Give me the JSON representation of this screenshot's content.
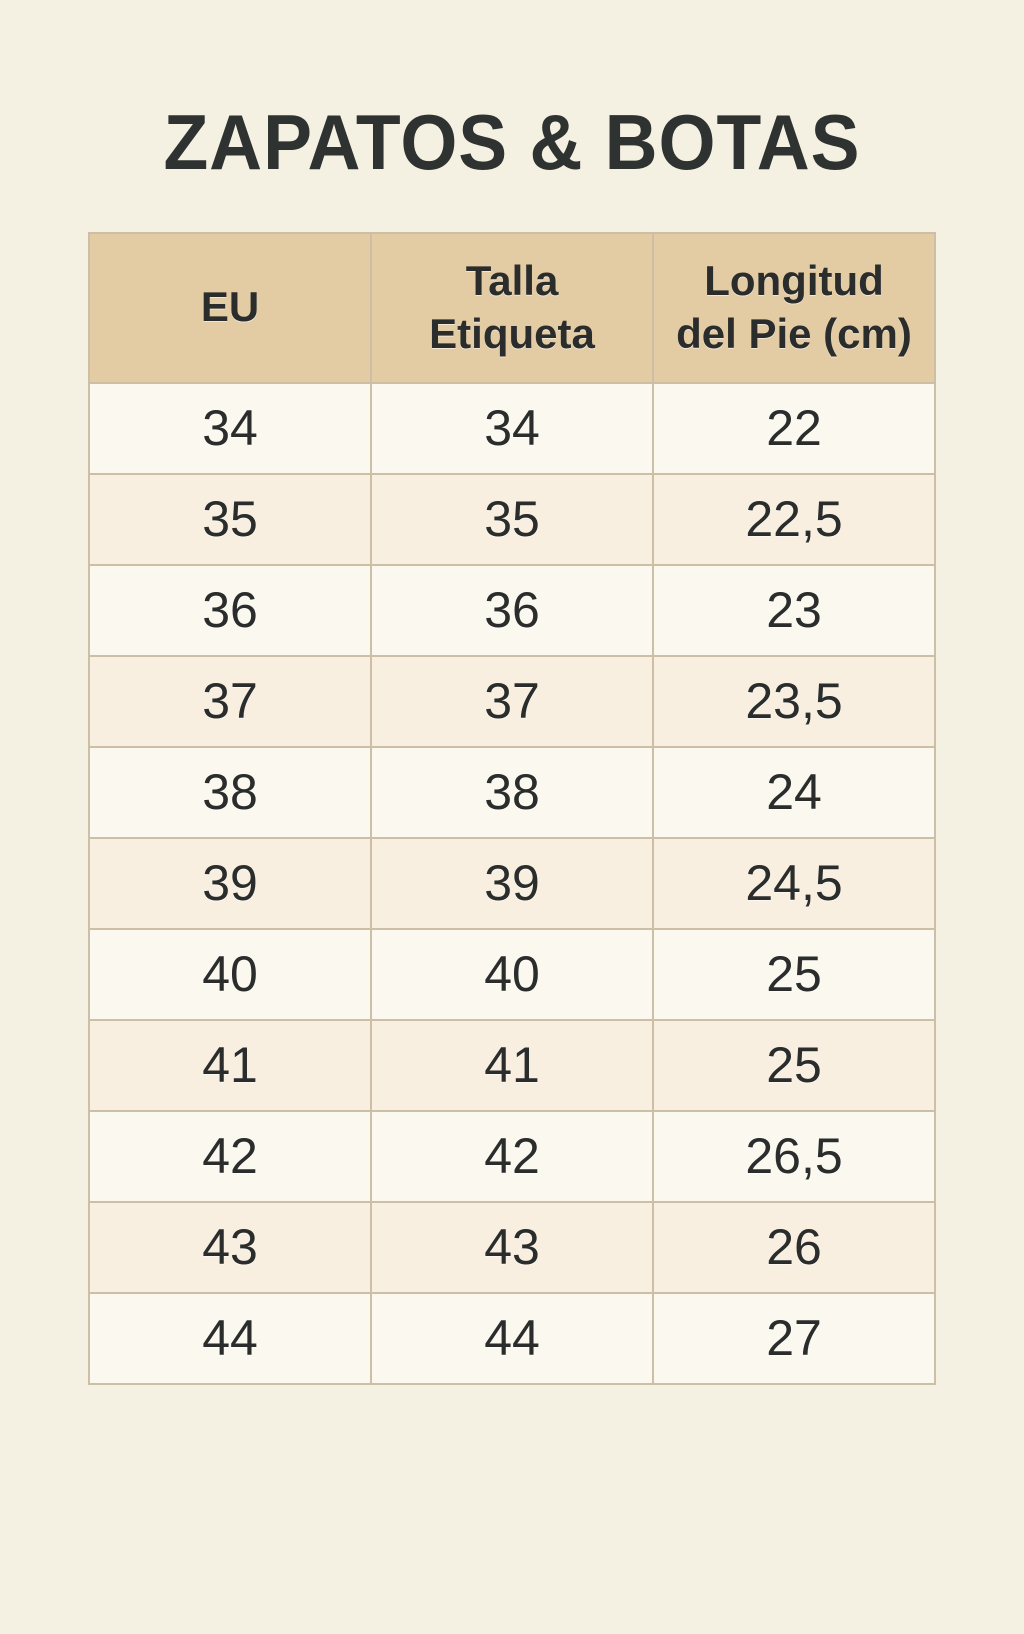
{
  "page": {
    "title": "ZAPATOS & BOTAS"
  },
  "size_chart": {
    "columns": [
      {
        "key": "eu",
        "label": "EU"
      },
      {
        "key": "talla-etiqueta",
        "label": "Talla Etiqueta"
      },
      {
        "key": "longitud-del-pie-cm",
        "label": "Longitud del Pie (cm)"
      }
    ],
    "rows": [
      [
        "34",
        "34",
        "22"
      ],
      [
        "35",
        "35",
        "22,5"
      ],
      [
        "36",
        "36",
        "23"
      ],
      [
        "37",
        "37",
        "23,5"
      ],
      [
        "38",
        "38",
        "24"
      ],
      [
        "39",
        "39",
        "24,5"
      ],
      [
        "40",
        "40",
        "25"
      ],
      [
        "41",
        "41",
        "25"
      ],
      [
        "42",
        "42",
        "26,5"
      ],
      [
        "43",
        "43",
        "26"
      ],
      [
        "44",
        "44",
        "27"
      ]
    ]
  },
  "colors": {
    "page_bg": "#f5f1e2",
    "row_light": "#faf8ef",
    "row_warm": "#f8efe0",
    "header_bg": "#e3cba4",
    "border": "#cdbea6",
    "text": "#2a2d2b",
    "title": "#2e3230"
  }
}
